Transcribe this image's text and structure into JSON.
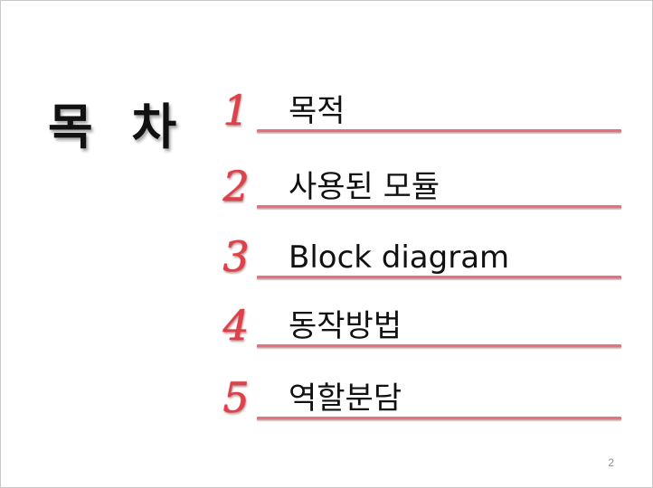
{
  "slide": {
    "title": "목 차",
    "items": [
      {
        "number": "1",
        "label": "목적"
      },
      {
        "number": "2",
        "label": "사용된 모듈"
      },
      {
        "number": "3",
        "label": "Block diagram"
      },
      {
        "number": "4",
        "label": "동작방법"
      },
      {
        "number": "5",
        "label": "역할분담"
      }
    ],
    "page_number": "2"
  },
  "colors": {
    "number": "#e0404a",
    "rule": "#e8707c",
    "text": "#111111"
  }
}
